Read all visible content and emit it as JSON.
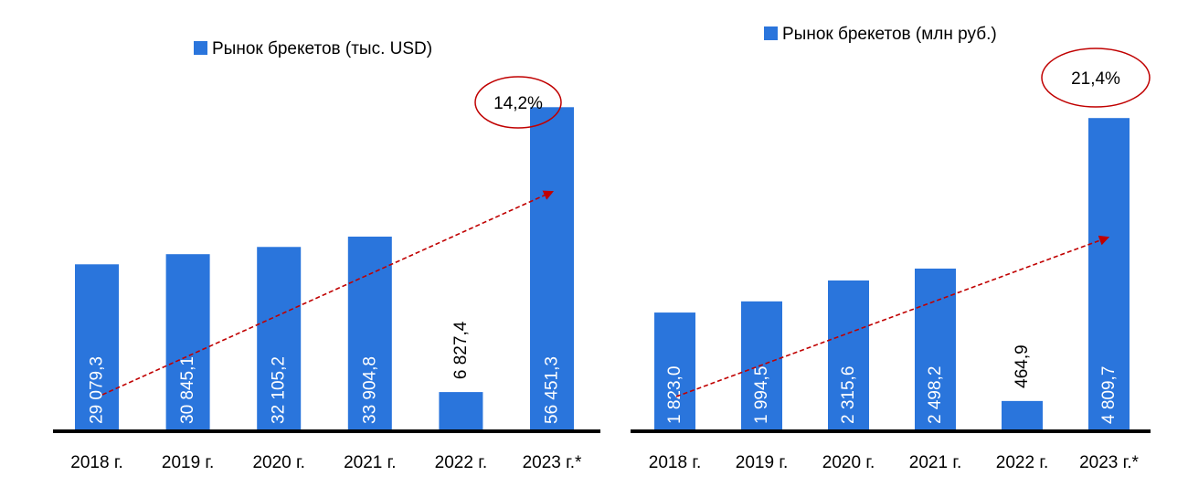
{
  "chart_data": [
    {
      "type": "bar",
      "categories": [
        "2018 г.",
        "2019 г.",
        "2020 г.",
        "2021 г.",
        "2022 г.",
        "2023 г.*"
      ],
      "series": [
        {
          "name": "Рынок брекетов (тыс. USD)",
          "values": [
            29079.3,
            30845.1,
            32105.2,
            33904.8,
            6827.4,
            56451.3
          ],
          "labels": [
            "29 079,3",
            "30 845,1",
            "32 105,2",
            "33 904,8",
            "6 827,4",
            "56 451,3"
          ]
        }
      ],
      "ylim": [
        0,
        60000
      ],
      "grid": false,
      "legend_position": "top",
      "annotation": "14,2%",
      "colors": {
        "bar": "#2a75dc",
        "axis": "#000000",
        "trend": "#c00000",
        "ellipse": "#c00000",
        "label_inside": "#ffffff",
        "label_outside": "#000000"
      }
    },
    {
      "type": "bar",
      "categories": [
        "2018 г.",
        "2019 г.",
        "2020 г.",
        "2021 г.",
        "2022 г.",
        "2023 г.*"
      ],
      "series": [
        {
          "name": "Рынок брекетов (млн руб.)",
          "values": [
            1823.0,
            1994.5,
            2315.6,
            2498.2,
            464.9,
            4809.7
          ],
          "labels": [
            "1 823,0",
            "1 994,5",
            "2 315,6",
            "2 498,2",
            "464,9",
            "4 809,7"
          ]
        }
      ],
      "ylim": [
        0,
        5500
      ],
      "grid": false,
      "legend_position": "top",
      "annotation": "21,4%",
      "colors": {
        "bar": "#2a75dc",
        "axis": "#000000",
        "trend": "#c00000",
        "ellipse": "#c00000",
        "label_inside": "#ffffff",
        "label_outside": "#000000"
      }
    }
  ]
}
